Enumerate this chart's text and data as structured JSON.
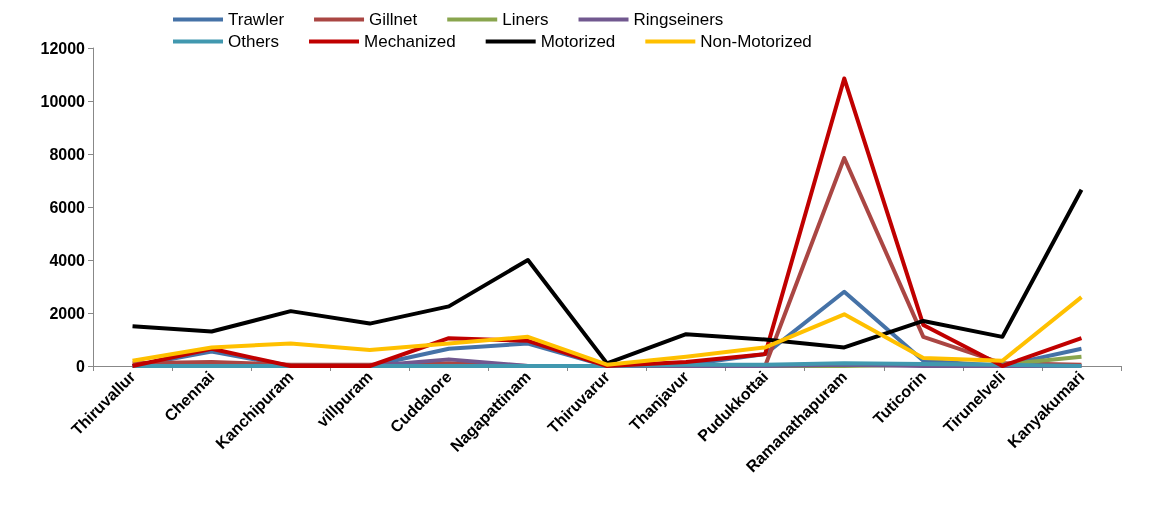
{
  "chart_data": {
    "type": "line",
    "categories": [
      "Thiruvallur",
      "Chennai",
      "Kanchipuram",
      "villpuram",
      "Cuddalore",
      "Nagapattinam",
      "Thiruvarur",
      "Thanjavur",
      "Pudukkottai",
      "Ramanathapuram",
      "Tuticorin",
      "Tirunelveli",
      "Kanyakumari"
    ],
    "series": [
      {
        "name": "Trawler",
        "color": "#4572a7",
        "values": [
          0,
          550,
          0,
          0,
          650,
          850,
          0,
          50,
          450,
          2800,
          200,
          0,
          650
        ]
      },
      {
        "name": "Gillnet",
        "color": "#aa4643",
        "values": [
          100,
          150,
          50,
          50,
          100,
          0,
          0,
          0,
          0,
          7850,
          1100,
          100,
          50
        ]
      },
      {
        "name": "Liners",
        "color": "#89a54e",
        "values": [
          null,
          null,
          null,
          null,
          null,
          null,
          null,
          null,
          0,
          0,
          50,
          50,
          350
        ]
      },
      {
        "name": "Ringseiners",
        "color": "#71588f",
        "values": [
          0,
          0,
          0,
          0,
          250,
          0,
          0,
          0,
          0,
          50,
          0,
          0,
          0
        ]
      },
      {
        "name": "Others",
        "color": "#4198af",
        "values": [
          0,
          0,
          0,
          0,
          0,
          0,
          0,
          50,
          50,
          100,
          80,
          50,
          0
        ]
      },
      {
        "name": "Mechanized",
        "color": "#c00000",
        "values": [
          0,
          650,
          0,
          0,
          1050,
          950,
          0,
          150,
          450,
          10850,
          1550,
          0,
          1050
        ]
      },
      {
        "name": "Motorized",
        "color": "#000000",
        "values": [
          1500,
          1300,
          2070,
          1600,
          2250,
          4000,
          100,
          1200,
          1000,
          700,
          1700,
          1100,
          6650
        ]
      },
      {
        "name": "Non-Motorized",
        "color": "#ffc000",
        "values": [
          200,
          700,
          850,
          600,
          850,
          1100,
          50,
          350,
          700,
          1950,
          300,
          200,
          2600
        ]
      }
    ],
    "ylim": [
      0,
      12000
    ],
    "yticks": [
      0,
      2000,
      4000,
      6000,
      8000,
      10000,
      12000
    ],
    "grid": false,
    "legend": "top",
    "marker": "none",
    "line_style": "solid"
  }
}
